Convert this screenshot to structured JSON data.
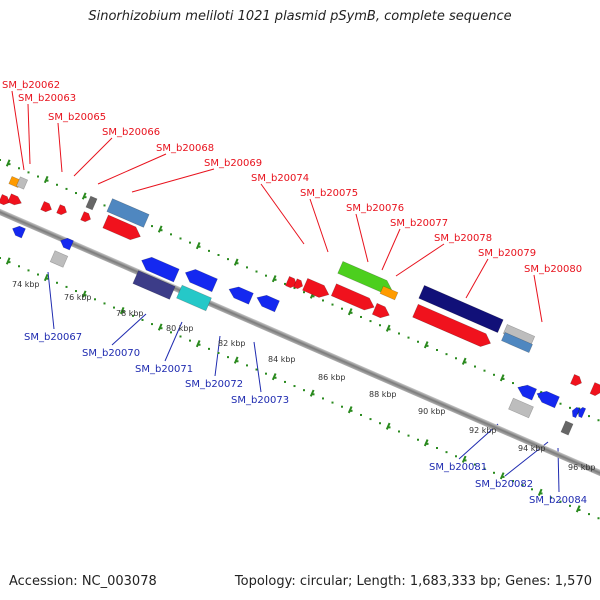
{
  "title": "Sinorhizobium meliloti 1021 plasmid pSymB, complete sequence",
  "footer": {
    "accession": "Accession: NC_003078",
    "info": "Topology: circular; Length: 1,683,333 bp; Genes: 1,570"
  },
  "axis_labels": [
    "74 kbp",
    "76 kbp",
    "78 kbp",
    "80 kbp",
    "82 kbp",
    "84 kbp",
    "86 kbp",
    "88 kbp",
    "90 kbp",
    "92 kbp",
    "94 kbp",
    "96 kbp"
  ],
  "genes_forward": [
    "SM_b20062",
    "SM_b20063",
    "SM_b20065",
    "SM_b20066",
    "SM_b20068",
    "SM_b20069",
    "SM_b20074",
    "SM_b20075",
    "SM_b20076",
    "SM_b20077",
    "SM_b20078",
    "SM_b20079",
    "SM_b20080"
  ],
  "genes_reverse": [
    "SM_b20067",
    "SM_b20070",
    "SM_b20071",
    "SM_b20072",
    "SM_b20073",
    "SM_b20081",
    "SM_b20082",
    "SM_b20084"
  ],
  "colors": {
    "forward_label": "#e8121d",
    "reverse_label": "#1f2bb0",
    "backbone": "#8c8c8c",
    "tick": "#2a8a1e",
    "gene_red": "#f0121d",
    "gene_blue": "#1428f0",
    "gene_navy": "#111078",
    "gene_green": "#4ccf1e",
    "gene_orange": "#ff9b00",
    "gene_grey": "#bdbdbd",
    "gene_steel": "#4f87c0",
    "gene_cyan": "#25c8c8",
    "gene_slate": "#3c3c88",
    "gene_dark": "#666666"
  }
}
